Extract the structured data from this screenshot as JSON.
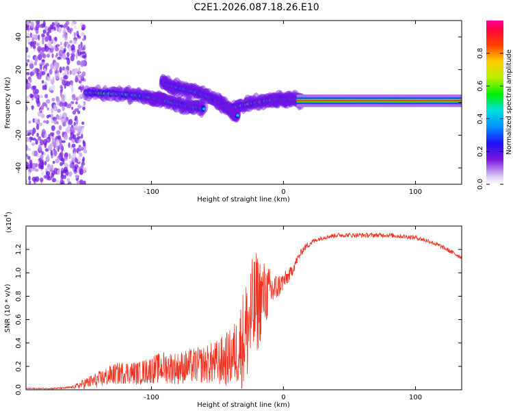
{
  "title": "C2E1.2026.087.18.26.E10",
  "chart_data": [
    {
      "type": "heatmap",
      "name": "spectrogram",
      "xlabel": "Height of straight line (km)",
      "ylabel": "Frequency (Hz)",
      "xlim": [
        -195,
        135
      ],
      "ylim": [
        -50,
        50
      ],
      "xticks": [
        -100,
        0,
        100
      ],
      "yticks": [
        -40,
        -20,
        0,
        20,
        40
      ],
      "colorbar": {
        "label": "Normalized spectral amplitude",
        "range": [
          0.0,
          1.0
        ],
        "ticks": [
          0.0,
          0.2,
          0.4,
          0.6,
          0.8
        ],
        "colormap": "rainbow"
      },
      "features": [
        {
          "label": "noise",
          "x_range": [
            -195,
            -150
          ],
          "f_range": [
            -50,
            50
          ],
          "amplitude": 0.15
        },
        {
          "label": "trace-1",
          "points": [
            [
              -150,
              6
            ],
            [
              -120,
              5
            ],
            [
              -100,
              3
            ],
            [
              -90,
              1
            ],
            [
              -75,
              -2
            ],
            [
              -60,
              -4
            ]
          ],
          "amplitude": 0.45
        },
        {
          "label": "trace-2",
          "points": [
            [
              -92,
              12
            ],
            [
              -80,
              9
            ],
            [
              -65,
              6
            ],
            [
              -50,
              1
            ],
            [
              -40,
              -5
            ],
            [
              -35,
              -8
            ]
          ],
          "amplitude": 0.4
        },
        {
          "label": "trace-3",
          "points": [
            [
              -38,
              -3
            ],
            [
              -20,
              0
            ],
            [
              -5,
              2
            ],
            [
              5,
              2
            ],
            [
              15,
              1
            ]
          ],
          "amplitude": 0.6
        },
        {
          "label": "carrier",
          "points": [
            [
              10,
              1
            ],
            [
              135,
              1
            ]
          ],
          "amplitude": 0.95
        }
      ]
    },
    {
      "type": "line",
      "name": "snr",
      "xlabel": "Height of straight line (km)",
      "ylabel": "SNR (10 * v/v)",
      "exponent_label": "(x10",
      "exponent_value": "4",
      "exponent_close": ")",
      "xlim": [
        -195,
        135
      ],
      "ylim": [
        0.0,
        1.4
      ],
      "xticks": [
        -100,
        0,
        100
      ],
      "yticks": [
        0.0,
        0.2,
        0.4,
        0.6,
        0.8,
        1.0,
        1.2
      ],
      "color": "#ee3322",
      "x": [
        -195,
        -175,
        -160,
        -150,
        -140,
        -130,
        -120,
        -110,
        -100,
        -90,
        -80,
        -70,
        -60,
        -50,
        -40,
        -35,
        -30,
        -25,
        -20,
        -15,
        -10,
        -5,
        0,
        5,
        10,
        15,
        20,
        25,
        30,
        35,
        40,
        50,
        60,
        70,
        80,
        90,
        100,
        110,
        120,
        130,
        135
      ],
      "y": [
        0.01,
        0.01,
        0.02,
        0.05,
        0.08,
        0.12,
        0.14,
        0.13,
        0.16,
        0.18,
        0.17,
        0.19,
        0.2,
        0.21,
        0.25,
        0.3,
        0.4,
        0.55,
        0.7,
        0.78,
        0.82,
        0.86,
        0.92,
        0.98,
        1.1,
        1.2,
        1.25,
        1.28,
        1.3,
        1.31,
        1.32,
        1.32,
        1.32,
        1.32,
        1.32,
        1.31,
        1.3,
        1.27,
        1.22,
        1.16,
        1.13
      ],
      "noise": [
        0.005,
        0.005,
        0.01,
        0.05,
        0.07,
        0.09,
        0.1,
        0.1,
        0.12,
        0.14,
        0.14,
        0.15,
        0.16,
        0.2,
        0.25,
        0.3,
        0.45,
        0.5,
        0.45,
        0.3,
        0.2,
        0.12,
        0.08,
        0.06,
        0.04,
        0.03,
        0.03,
        0.02,
        0.02,
        0.02,
        0.02,
        0.02,
        0.02,
        0.02,
        0.02,
        0.02,
        0.02,
        0.02,
        0.02,
        0.02,
        0.02
      ]
    }
  ]
}
